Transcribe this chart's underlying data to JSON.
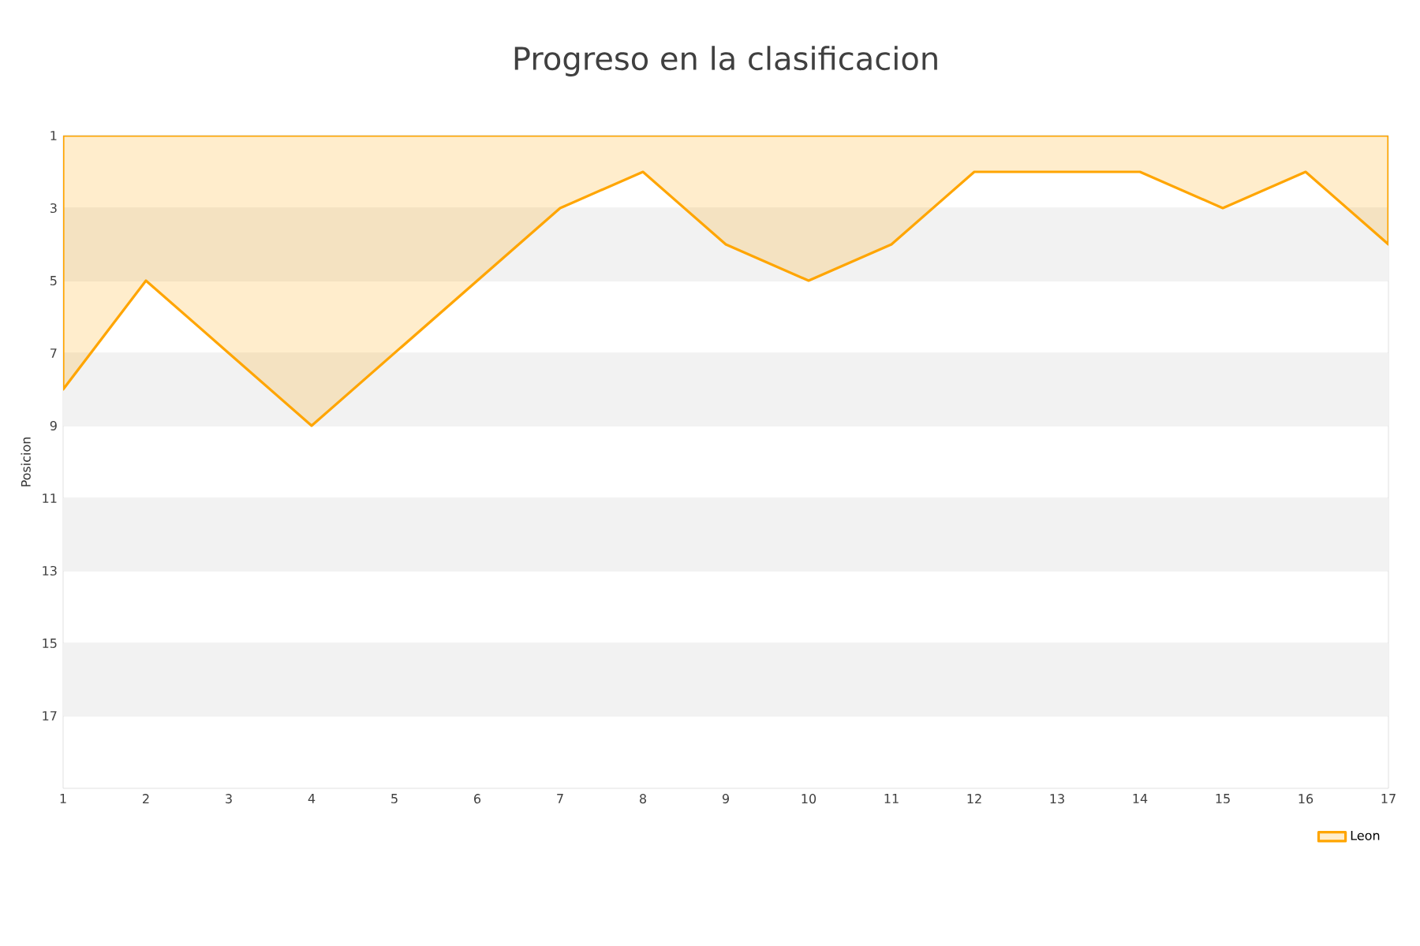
{
  "chart_data": {
    "type": "area",
    "title": "Progreso en la clasificacion",
    "ylabel": "Posicion",
    "x": [
      1,
      2,
      3,
      4,
      5,
      6,
      7,
      8,
      9,
      10,
      11,
      12,
      13,
      14,
      15,
      16,
      17
    ],
    "series": [
      {
        "name": "Leon",
        "color": "#ffa500",
        "values": [
          8,
          5,
          7,
          9,
          7,
          5,
          3,
          2,
          4,
          5,
          4,
          2,
          2,
          2,
          3,
          2,
          4
        ]
      }
    ],
    "xlim": [
      1,
      17
    ],
    "xticks": [
      1,
      2,
      3,
      4,
      5,
      6,
      7,
      8,
      9,
      10,
      11,
      12,
      13,
      14,
      15,
      16,
      17
    ],
    "ylim": [
      19,
      1
    ],
    "yticks": [
      1,
      3,
      5,
      7,
      9,
      11,
      13,
      15,
      17
    ],
    "bands": [
      {
        "axis": "y",
        "from": 3,
        "to": 5,
        "color": "#f2f2f2"
      },
      {
        "axis": "y",
        "from": 7,
        "to": 9,
        "color": "#f2f2f2"
      },
      {
        "axis": "y",
        "from": 11,
        "to": 13,
        "color": "#f2f2f2"
      },
      {
        "axis": "y",
        "from": 15,
        "to": 17,
        "color": "#f2f2f2"
      }
    ],
    "grid": "y",
    "legend": "bottom right"
  }
}
